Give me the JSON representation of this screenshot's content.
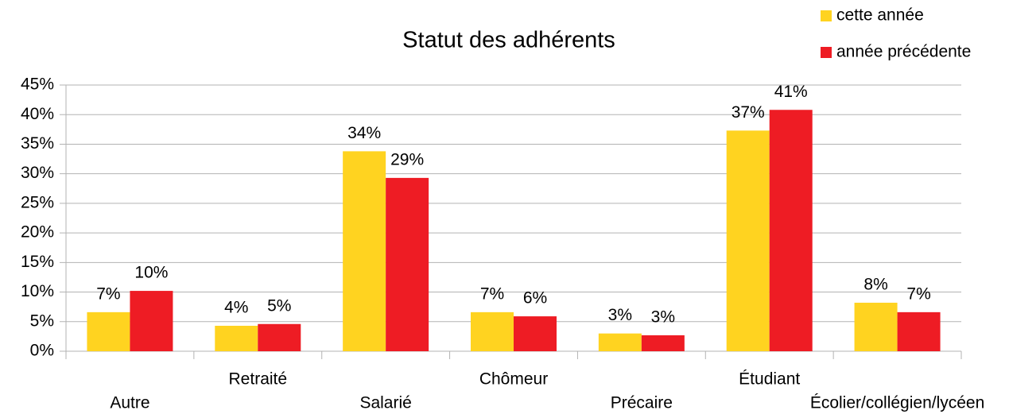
{
  "chart_data": {
    "type": "bar",
    "title": "Statut des adhérents",
    "categories": [
      "Autre",
      "Retraité",
      "Salarié",
      "Chômeur",
      "Précaire",
      "Étudiant",
      "Écolier/collégien/lycéen"
    ],
    "series": [
      {
        "name": "cette année",
        "color": "#ffd320",
        "values": [
          6.6,
          4.3,
          33.8,
          6.6,
          3.0,
          37.3,
          8.2
        ],
        "value_labels": [
          "7%",
          "4%",
          "34%",
          "7%",
          "3%",
          "37%",
          "8%"
        ]
      },
      {
        "name": "année précédente",
        "color": "#ee1c24",
        "values": [
          10.2,
          4.6,
          29.3,
          5.9,
          2.7,
          40.8,
          6.6
        ],
        "value_labels": [
          "10%",
          "5%",
          "29%",
          "6%",
          "3%",
          "41%",
          "7%"
        ]
      }
    ],
    "ylim": [
      0,
      45
    ],
    "yticks": [
      {
        "value": 0,
        "label": "0%"
      },
      {
        "value": 5,
        "label": "5%"
      },
      {
        "value": 10,
        "label": "10%"
      },
      {
        "value": 15,
        "label": "15%"
      },
      {
        "value": 20,
        "label": "20%"
      },
      {
        "value": 25,
        "label": "25%"
      },
      {
        "value": 30,
        "label": "30%"
      },
      {
        "value": 35,
        "label": "35%"
      },
      {
        "value": 40,
        "label": "40%"
      },
      {
        "value": 45,
        "label": "45%"
      }
    ],
    "grid": true,
    "legend": "top-right"
  }
}
